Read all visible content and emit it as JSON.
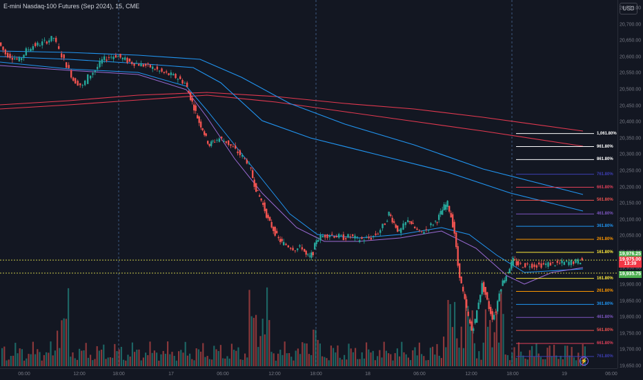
{
  "header": {
    "title": "E-mini Nasdaq-100 Futures (Sep 2024), 15, CME",
    "currency": "USD"
  },
  "price_axis": {
    "ticks": [
      "20,750.00",
      "20,700.00",
      "20,650.00",
      "20,600.00",
      "20,550.00",
      "20,500.00",
      "20,450.00",
      "20,400.00",
      "20,350.00",
      "20,300.00",
      "20,250.00",
      "20,200.00",
      "20,150.00",
      "20,100.00",
      "20,050.00",
      "20,000.00",
      "19,950.00",
      "19,900.00",
      "19,850.00",
      "19,800.00",
      "19,750.00",
      "19,700.00",
      "19,650.00"
    ],
    "tags": [
      {
        "label": "19,976.25",
        "color": "#4caf50"
      },
      {
        "label": "19,975.00",
        "color": "#f23645"
      },
      {
        "label": "13:39",
        "color": "#f23645"
      },
      {
        "label": "19,935.75",
        "color": "#4caf50"
      }
    ]
  },
  "time_axis": {
    "labels": [
      "06:00",
      "12:00",
      "18:00",
      "17",
      "06:00",
      "12:00",
      "18:00",
      "18",
      "06:00",
      "12:00",
      "18:00",
      "19",
      "06:00"
    ]
  },
  "fib_upper": [
    {
      "label": "1,061.80%",
      "color": "#ffffff"
    },
    {
      "label": "961.80%",
      "color": "#ffffff"
    },
    {
      "label": "861.80%",
      "color": "#ffffff"
    },
    {
      "label": "761.80%",
      "color": "#3f3fb5"
    },
    {
      "label": "661.80%",
      "color": "#e0405a"
    },
    {
      "label": "561.80%",
      "color": "#ef5350"
    },
    {
      "label": "461.80%",
      "color": "#7e57c2"
    },
    {
      "label": "361.80%",
      "color": "#2196f3"
    },
    {
      "label": "261.80%",
      "color": "#ff9800"
    },
    {
      "label": "161.80%",
      "color": "#ffeb3b"
    }
  ],
  "fib_lower": [
    {
      "label": "161.80%",
      "color": "#ffeb3b"
    },
    {
      "label": "261.80%",
      "color": "#ff9800"
    },
    {
      "label": "361.80%",
      "color": "#2196f3"
    },
    {
      "label": "461.80%",
      "color": "#7e57c2"
    },
    {
      "label": "561.80%",
      "color": "#ef5350"
    },
    {
      "label": "661.80%",
      "color": "#e0405a"
    },
    {
      "label": "761.80%",
      "color": "#3f3fb5"
    }
  ],
  "colors": {
    "up": "#26a69a",
    "down": "#ef5350",
    "ma_blue": "#2196f3",
    "ma_red": "#e53950",
    "ma_purple": "#9c6bd6"
  },
  "bolt": "⚡",
  "chart_data": {
    "type": "candlestick",
    "symbol": "E-mini Nasdaq-100 Futures (Sep 2024)",
    "interval": "15",
    "ylim": [
      19650,
      20750
    ],
    "fib_levels_upper": [
      20365,
      20325,
      20285,
      20240,
      20200,
      20160,
      20118,
      20080,
      20040,
      20000
    ],
    "fib_levels_lower": [
      19920,
      19880,
      19840,
      19800,
      19760,
      19720,
      19680
    ],
    "price_path": [
      [
        0,
        20645
      ],
      [
        10,
        20610
      ],
      [
        20,
        20600
      ],
      [
        30,
        20590
      ],
      [
        40,
        20620
      ],
      [
        50,
        20635
      ],
      [
        60,
        20640
      ],
      [
        70,
        20650
      ],
      [
        80,
        20660
      ],
      [
        88,
        20620
      ],
      [
        95,
        20590
      ],
      [
        102,
        20560
      ],
      [
        108,
        20530
      ],
      [
        115,
        20520
      ],
      [
        122,
        20510
      ],
      [
        130,
        20540
      ],
      [
        140,
        20560
      ],
      [
        150,
        20590
      ],
      [
        160,
        20600
      ],
      [
        170,
        20605
      ],
      [
        180,
        20595
      ],
      [
        190,
        20585
      ],
      [
        200,
        20580
      ],
      [
        210,
        20575
      ],
      [
        220,
        20570
      ],
      [
        230,
        20560
      ],
      [
        240,
        20550
      ],
      [
        250,
        20545
      ],
      [
        260,
        20535
      ],
      [
        270,
        20520
      ],
      [
        275,
        20490
      ],
      [
        280,
        20460
      ],
      [
        285,
        20430
      ],
      [
        290,
        20400
      ],
      [
        295,
        20380
      ],
      [
        300,
        20350
      ],
      [
        305,
        20330
      ],
      [
        310,
        20340
      ],
      [
        320,
        20350
      ],
      [
        330,
        20340
      ],
      [
        340,
        20320
      ],
      [
        350,
        20300
      ],
      [
        360,
        20280
      ],
      [
        365,
        20250
      ],
      [
        370,
        20210
      ],
      [
        375,
        20180
      ],
      [
        380,
        20160
      ],
      [
        385,
        20130
      ],
      [
        390,
        20100
      ],
      [
        395,
        20080
      ],
      [
        400,
        20060
      ],
      [
        405,
        20040
      ],
      [
        410,
        20030
      ],
      [
        420,
        20020
      ],
      [
        430,
        20010
      ],
      [
        440,
        20015
      ],
      [
        445,
        19990
      ],
      [
        450,
        19985
      ],
      [
        455,
        20000
      ],
      [
        460,
        20040
      ],
      [
        470,
        20050
      ],
      [
        480,
        20055
      ],
      [
        490,
        20050
      ],
      [
        500,
        20045
      ],
      [
        510,
        20050
      ],
      [
        520,
        20040
      ],
      [
        530,
        20040
      ],
      [
        540,
        20045
      ],
      [
        550,
        20060
      ],
      [
        560,
        20090
      ],
      [
        565,
        20120
      ],
      [
        570,
        20100
      ],
      [
        575,
        20080
      ],
      [
        580,
        20060
      ],
      [
        590,
        20090
      ],
      [
        595,
        20100
      ],
      [
        600,
        20080
      ],
      [
        610,
        20060
      ],
      [
        620,
        20070
      ],
      [
        630,
        20090
      ],
      [
        635,
        20100
      ],
      [
        640,
        20120
      ],
      [
        645,
        20140
      ],
      [
        650,
        20150
      ],
      [
        655,
        20110
      ],
      [
        660,
        20060
      ],
      [
        665,
        19960
      ],
      [
        670,
        19900
      ],
      [
        675,
        19850
      ],
      [
        680,
        19800
      ],
      [
        685,
        19760
      ],
      [
        690,
        19790
      ],
      [
        695,
        19850
      ],
      [
        700,
        19900
      ],
      [
        705,
        19870
      ],
      [
        710,
        19830
      ],
      [
        715,
        19800
      ],
      [
        720,
        19820
      ],
      [
        725,
        19880
      ],
      [
        730,
        19910
      ],
      [
        735,
        19930
      ],
      [
        740,
        19955
      ],
      [
        745,
        19975
      ],
      [
        750,
        19965
      ],
      [
        760,
        19960
      ],
      [
        770,
        19962
      ],
      [
        780,
        19960
      ],
      [
        790,
        19962
      ],
      [
        800,
        19965
      ],
      [
        810,
        19965
      ],
      [
        820,
        19968
      ],
      [
        830,
        19970
      ],
      [
        840,
        19972
      ],
      [
        845,
        19975
      ]
    ]
  }
}
